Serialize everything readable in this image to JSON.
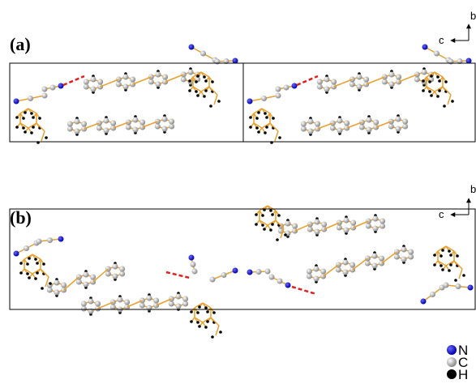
{
  "panels": [
    {
      "label": "(a)",
      "axes": {
        "vertical": "b",
        "horizontal": "c"
      }
    },
    {
      "label": "(b)",
      "axes": {
        "vertical": "b",
        "horizontal": "c"
      }
    }
  ],
  "legend": [
    {
      "label": "N"
    },
    {
      "label": "C"
    },
    {
      "label": "H"
    }
  ]
}
